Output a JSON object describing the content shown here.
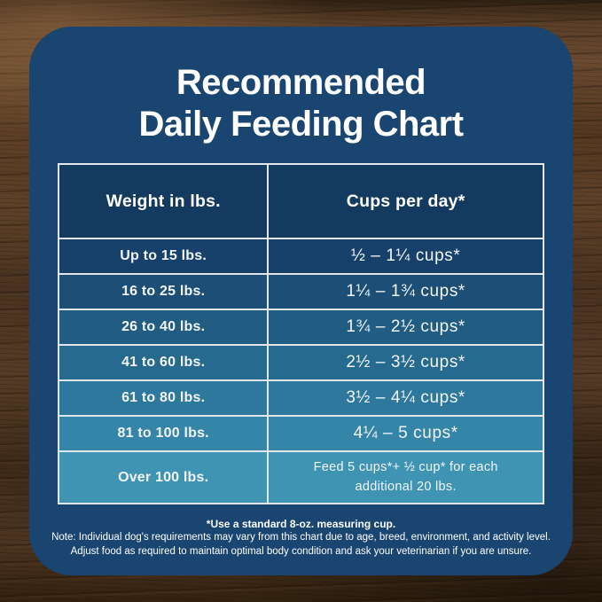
{
  "title": {
    "line1": "Recommended",
    "line2": "Daily Feeding Chart"
  },
  "table": {
    "col1_header": "Weight in lbs.",
    "col2_header": "Cups per day*",
    "rows": [
      {
        "weight": "Up to 15 lbs.",
        "cups": "½ – 1¼ cups*"
      },
      {
        "weight": "16 to 25 lbs.",
        "cups": "1¼ – 1¾ cups*"
      },
      {
        "weight": "26 to 40 lbs.",
        "cups": "1¾ – 2½ cups*"
      },
      {
        "weight": "41 to 60 lbs.",
        "cups": "2½ – 3½ cups*"
      },
      {
        "weight": "61 to 80 lbs.",
        "cups": "3½ – 4¼ cups*"
      },
      {
        "weight": "81 to 100 lbs.",
        "cups": "4¼ – 5 cups*"
      },
      {
        "weight": "Over 100 lbs.",
        "cups": "Feed 5 cups*+ ½ cup* for each additional 20 lbs."
      }
    ],
    "header_bg": "#143a60",
    "row_colors": [
      "#17416b",
      "#1c4e76",
      "#215c82",
      "#276a90",
      "#2e779d",
      "#3585a9",
      "#3f94b4"
    ],
    "border_color": "#e3e6e8"
  },
  "footnotes": {
    "cup_note": "*Use a standard 8-oz. measuring cup.",
    "note_line1": "Note: Individual dog's requirements may vary from this chart due to age, breed, environment, and activity level.",
    "note_line2": "Adjust food as required to maintain optimal body condition and ask your veterinarian if you are unsure."
  },
  "colors": {
    "card_navy": "#1a4571",
    "text_white": "#ffffff",
    "wood_brown": "#47311f"
  },
  "chart_data": {
    "type": "table",
    "title": "Recommended Daily Feeding Chart",
    "columns": [
      "Weight in lbs.",
      "Cups per day*"
    ],
    "rows": [
      [
        "Up to 15 lbs.",
        "½ – 1¼ cups*"
      ],
      [
        "16 to 25 lbs.",
        "1¼ – 1¾ cups*"
      ],
      [
        "26 to 40 lbs.",
        "1¾ – 2½ cups*"
      ],
      [
        "41 to 60 lbs.",
        "2½ – 3½ cups*"
      ],
      [
        "61 to 80 lbs.",
        "3½ – 4¼ cups*"
      ],
      [
        "81 to 100 lbs.",
        "4¼ – 5 cups*"
      ],
      [
        "Over 100 lbs.",
        "Feed 5 cups*+ ½ cup* for each additional 20 lbs."
      ]
    ],
    "footnote": "*Use a standard 8-oz. measuring cup.",
    "notes": "Individual dog's requirements may vary from this chart due to age, breed, environment, and activity level. Adjust food as required to maintain optimal body condition and ask your veterinarian if you are unsure."
  }
}
